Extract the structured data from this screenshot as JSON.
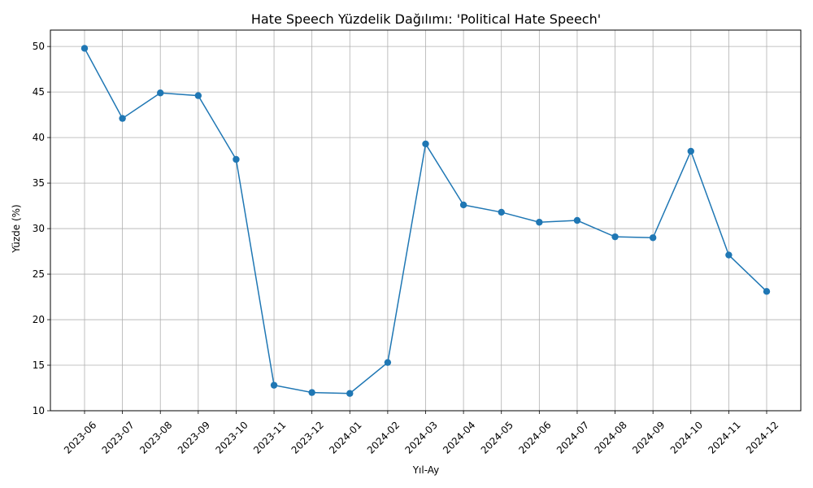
{
  "chart_data": {
    "type": "line",
    "title": "Hate Speech Yüzdelik Dağılımı: 'Political Hate Speech'",
    "xlabel": "Yıl-Ay",
    "ylabel": "Yüzde (%)",
    "categories": [
      "2023-06",
      "2023-07",
      "2023-08",
      "2023-09",
      "2023-10",
      "2023-11",
      "2023-12",
      "2024-01",
      "2024-02",
      "2024-03",
      "2024-04",
      "2024-05",
      "2024-06",
      "2024-07",
      "2024-08",
      "2024-09",
      "2024-10",
      "2024-11",
      "2024-12"
    ],
    "values": [
      49.8,
      42.1,
      44.9,
      44.6,
      37.6,
      12.8,
      12.0,
      11.9,
      15.3,
      39.3,
      32.6,
      31.8,
      30.7,
      30.9,
      29.1,
      29.0,
      38.5,
      27.1,
      23.1
    ],
    "yticks": [
      10,
      15,
      20,
      25,
      30,
      35,
      40,
      45,
      50
    ],
    "ylim": [
      10,
      51.8
    ],
    "grid": true,
    "line_color": "#1f77b4",
    "marker": "circle"
  }
}
